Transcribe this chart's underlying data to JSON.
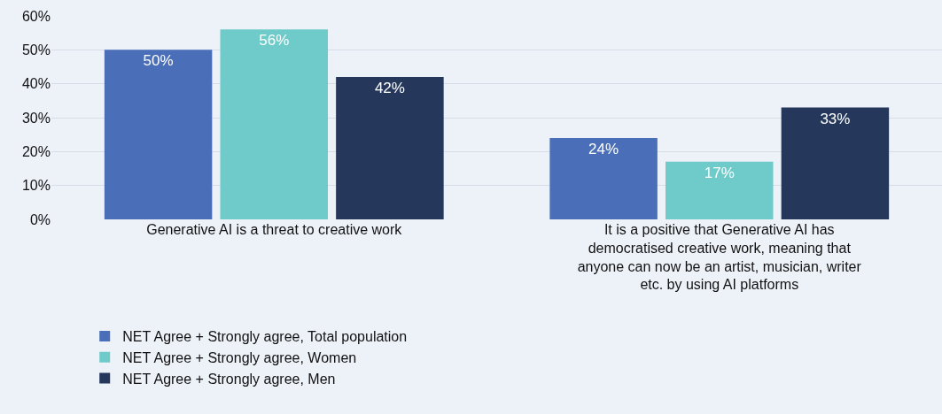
{
  "chart_data": {
    "type": "bar",
    "categories": [
      "Generative AI is a threat to creative work",
      "It is a positive that Generative AI has democratised creative work, meaning that anyone can now be an artist, musician, writer etc. by using AI platforms"
    ],
    "series": [
      {
        "name": "NET Agree + Strongly agree, Total population",
        "color": "#4a6fb8",
        "values": [
          50,
          24
        ],
        "value_labels": [
          "50%",
          "24%"
        ]
      },
      {
        "name": "NET Agree + Strongly agree, Women",
        "color": "#6fcbc9",
        "values": [
          56,
          17
        ],
        "value_labels": [
          "56%",
          "17%"
        ]
      },
      {
        "name": "NET Agree + Strongly agree, Men",
        "color": "#25375a",
        "values": [
          42,
          33
        ],
        "value_labels": [
          "42%",
          "33%"
        ]
      }
    ],
    "ylim": [
      0,
      60
    ],
    "yticks": [
      {
        "value": 0,
        "label": "0%"
      },
      {
        "value": 10,
        "label": "10%"
      },
      {
        "value": 20,
        "label": "20%"
      },
      {
        "value": 30,
        "label": "30%"
      },
      {
        "value": 40,
        "label": "40%"
      },
      {
        "value": 50,
        "label": "50%"
      },
      {
        "value": 60,
        "label": "60%"
      }
    ],
    "grid": "y",
    "legend": "bottom"
  }
}
